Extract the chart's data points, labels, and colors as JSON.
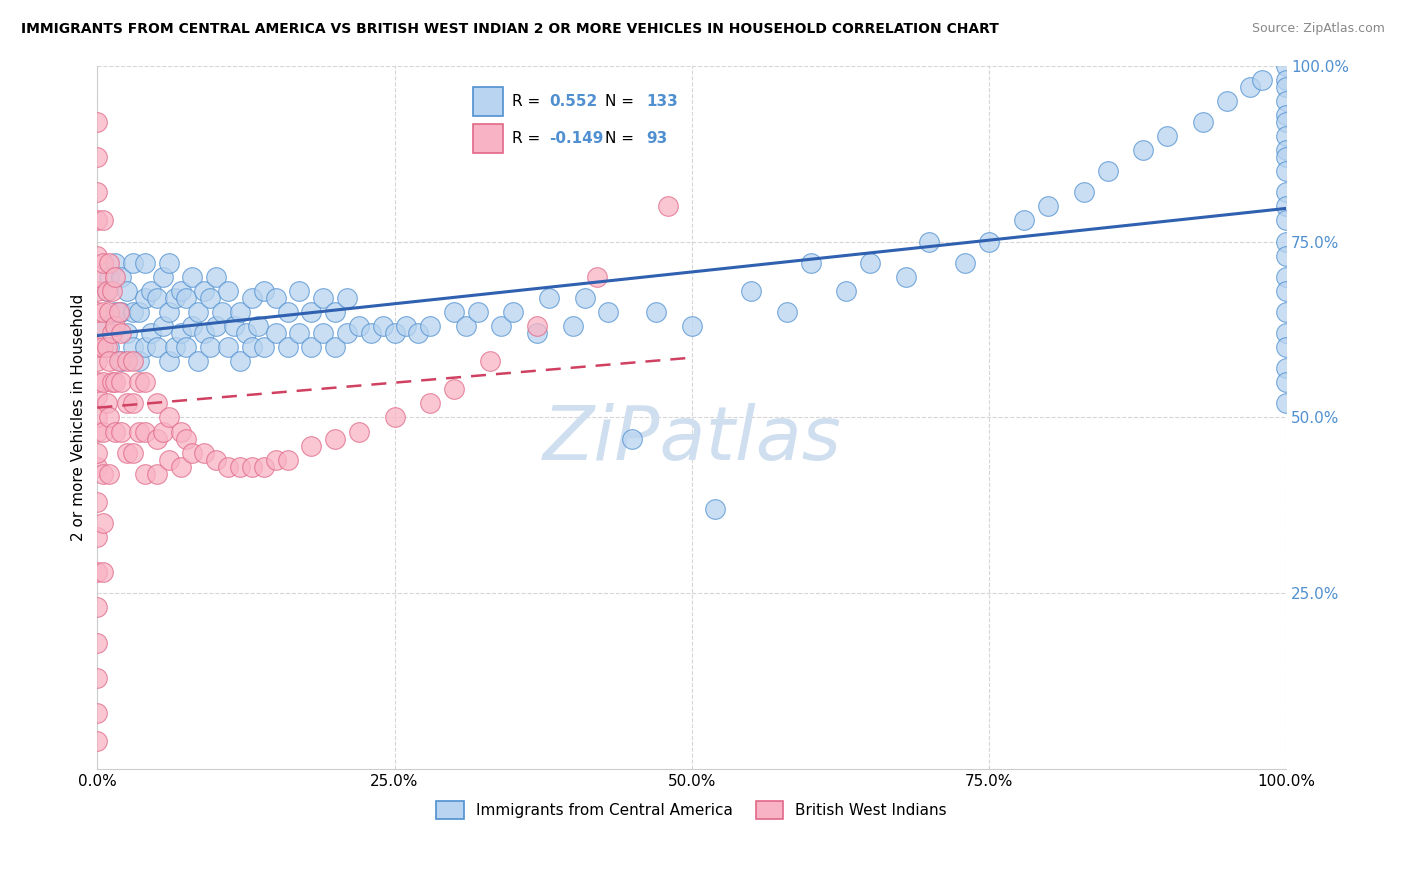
{
  "title": "IMMIGRANTS FROM CENTRAL AMERICA VS BRITISH WEST INDIAN 2 OR MORE VEHICLES IN HOUSEHOLD CORRELATION CHART",
  "source": "Source: ZipAtlas.com",
  "ylabel": "2 or more Vehicles in Household",
  "xlim": [
    0.0,
    1.0
  ],
  "ylim": [
    0.0,
    1.0
  ],
  "xtick_vals": [
    0.0,
    0.25,
    0.5,
    0.75,
    1.0
  ],
  "xtick_labels": [
    "0.0%",
    "25.0%",
    "50.0%",
    "75.0%",
    "100.0%"
  ],
  "ytick_vals": [
    0.25,
    0.5,
    0.75,
    1.0
  ],
  "ytick_labels": [
    "25.0%",
    "50.0%",
    "75.0%",
    "100.0%"
  ],
  "r_blue": 0.552,
  "n_blue": 133,
  "r_pink": -0.149,
  "n_pink": 93,
  "blue_fill": "#b8d4f0",
  "blue_edge": "#5090d0",
  "pink_fill": "#f8b4c4",
  "pink_edge": "#e06888",
  "blue_line_color": "#3060b0",
  "pink_line_color": "#d04060",
  "pink_line_dash": [
    6,
    4
  ],
  "grid_color": "#cccccc",
  "watermark_color": "#d0dff0",
  "ytick_color": "#5090d0",
  "legend_label_blue": "Immigrants from Central America",
  "legend_label_pink": "British West Indians",
  "blue_x": [
    0.005,
    0.008,
    0.01,
    0.01,
    0.015,
    0.015,
    0.02,
    0.02,
    0.02,
    0.025,
    0.025,
    0.03,
    0.03,
    0.03,
    0.035,
    0.035,
    0.04,
    0.04,
    0.04,
    0.045,
    0.045,
    0.05,
    0.05,
    0.055,
    0.055,
    0.06,
    0.06,
    0.06,
    0.065,
    0.065,
    0.07,
    0.07,
    0.075,
    0.075,
    0.08,
    0.08,
    0.085,
    0.085,
    0.09,
    0.09,
    0.095,
    0.095,
    0.1,
    0.1,
    0.105,
    0.11,
    0.11,
    0.115,
    0.12,
    0.12,
    0.125,
    0.13,
    0.13,
    0.135,
    0.14,
    0.14,
    0.15,
    0.15,
    0.16,
    0.16,
    0.17,
    0.17,
    0.18,
    0.18,
    0.19,
    0.19,
    0.2,
    0.2,
    0.21,
    0.21,
    0.22,
    0.23,
    0.24,
    0.25,
    0.26,
    0.27,
    0.28,
    0.3,
    0.31,
    0.32,
    0.34,
    0.35,
    0.37,
    0.38,
    0.4,
    0.41,
    0.43,
    0.45,
    0.47,
    0.5,
    0.52,
    0.55,
    0.58,
    0.6,
    0.63,
    0.65,
    0.68,
    0.7,
    0.73,
    0.75,
    0.78,
    0.8,
    0.83,
    0.85,
    0.88,
    0.9,
    0.93,
    0.95,
    0.97,
    0.98,
    1.0,
    1.0,
    1.0,
    1.0,
    1.0,
    1.0,
    1.0,
    1.0,
    1.0,
    1.0,
    1.0,
    1.0,
    1.0,
    1.0,
    1.0,
    1.0,
    1.0,
    1.0,
    1.0,
    1.0,
    1.0,
    1.0,
    1.0
  ],
  "blue_y": [
    0.63,
    0.68,
    0.6,
    0.7,
    0.65,
    0.72,
    0.58,
    0.65,
    0.7,
    0.62,
    0.68,
    0.6,
    0.65,
    0.72,
    0.58,
    0.65,
    0.6,
    0.67,
    0.72,
    0.62,
    0.68,
    0.6,
    0.67,
    0.63,
    0.7,
    0.58,
    0.65,
    0.72,
    0.6,
    0.67,
    0.62,
    0.68,
    0.6,
    0.67,
    0.63,
    0.7,
    0.58,
    0.65,
    0.62,
    0.68,
    0.6,
    0.67,
    0.63,
    0.7,
    0.65,
    0.6,
    0.68,
    0.63,
    0.58,
    0.65,
    0.62,
    0.6,
    0.67,
    0.63,
    0.6,
    0.68,
    0.62,
    0.67,
    0.6,
    0.65,
    0.62,
    0.68,
    0.6,
    0.65,
    0.62,
    0.67,
    0.6,
    0.65,
    0.62,
    0.67,
    0.63,
    0.62,
    0.63,
    0.62,
    0.63,
    0.62,
    0.63,
    0.65,
    0.63,
    0.65,
    0.63,
    0.65,
    0.62,
    0.67,
    0.63,
    0.67,
    0.65,
    0.47,
    0.65,
    0.63,
    0.37,
    0.68,
    0.65,
    0.72,
    0.68,
    0.72,
    0.7,
    0.75,
    0.72,
    0.75,
    0.78,
    0.8,
    0.82,
    0.85,
    0.88,
    0.9,
    0.92,
    0.95,
    0.97,
    0.98,
    1.0,
    0.98,
    0.97,
    0.95,
    0.93,
    0.92,
    0.9,
    0.88,
    0.87,
    0.85,
    0.82,
    0.8,
    0.78,
    0.75,
    0.73,
    0.7,
    0.68,
    0.65,
    0.62,
    0.6,
    0.57,
    0.55,
    0.52
  ],
  "pink_x": [
    0.0,
    0.0,
    0.0,
    0.0,
    0.0,
    0.0,
    0.0,
    0.0,
    0.0,
    0.0,
    0.0,
    0.0,
    0.0,
    0.0,
    0.0,
    0.0,
    0.0,
    0.0,
    0.0,
    0.0,
    0.0,
    0.0,
    0.0,
    0.0,
    0.0,
    0.005,
    0.005,
    0.005,
    0.005,
    0.005,
    0.005,
    0.005,
    0.005,
    0.005,
    0.008,
    0.008,
    0.008,
    0.01,
    0.01,
    0.01,
    0.01,
    0.01,
    0.012,
    0.012,
    0.012,
    0.015,
    0.015,
    0.015,
    0.015,
    0.018,
    0.018,
    0.02,
    0.02,
    0.02,
    0.025,
    0.025,
    0.025,
    0.03,
    0.03,
    0.03,
    0.035,
    0.035,
    0.04,
    0.04,
    0.04,
    0.05,
    0.05,
    0.05,
    0.055,
    0.06,
    0.06,
    0.07,
    0.07,
    0.075,
    0.08,
    0.09,
    0.1,
    0.11,
    0.12,
    0.13,
    0.14,
    0.15,
    0.16,
    0.18,
    0.2,
    0.22,
    0.25,
    0.28,
    0.3,
    0.33,
    0.37,
    0.42,
    0.48
  ],
  "pink_y": [
    0.92,
    0.87,
    0.82,
    0.78,
    0.73,
    0.68,
    0.63,
    0.58,
    0.53,
    0.48,
    0.43,
    0.38,
    0.33,
    0.28,
    0.23,
    0.18,
    0.13,
    0.08,
    0.04,
    0.7,
    0.65,
    0.6,
    0.55,
    0.5,
    0.45,
    0.78,
    0.72,
    0.65,
    0.6,
    0.55,
    0.48,
    0.42,
    0.35,
    0.28,
    0.68,
    0.6,
    0.52,
    0.72,
    0.65,
    0.58,
    0.5,
    0.42,
    0.68,
    0.62,
    0.55,
    0.7,
    0.63,
    0.55,
    0.48,
    0.65,
    0.58,
    0.62,
    0.55,
    0.48,
    0.58,
    0.52,
    0.45,
    0.58,
    0.52,
    0.45,
    0.55,
    0.48,
    0.55,
    0.48,
    0.42,
    0.52,
    0.47,
    0.42,
    0.48,
    0.5,
    0.44,
    0.48,
    0.43,
    0.47,
    0.45,
    0.45,
    0.44,
    0.43,
    0.43,
    0.43,
    0.43,
    0.44,
    0.44,
    0.46,
    0.47,
    0.48,
    0.5,
    0.52,
    0.54,
    0.58,
    0.63,
    0.7,
    0.8
  ]
}
